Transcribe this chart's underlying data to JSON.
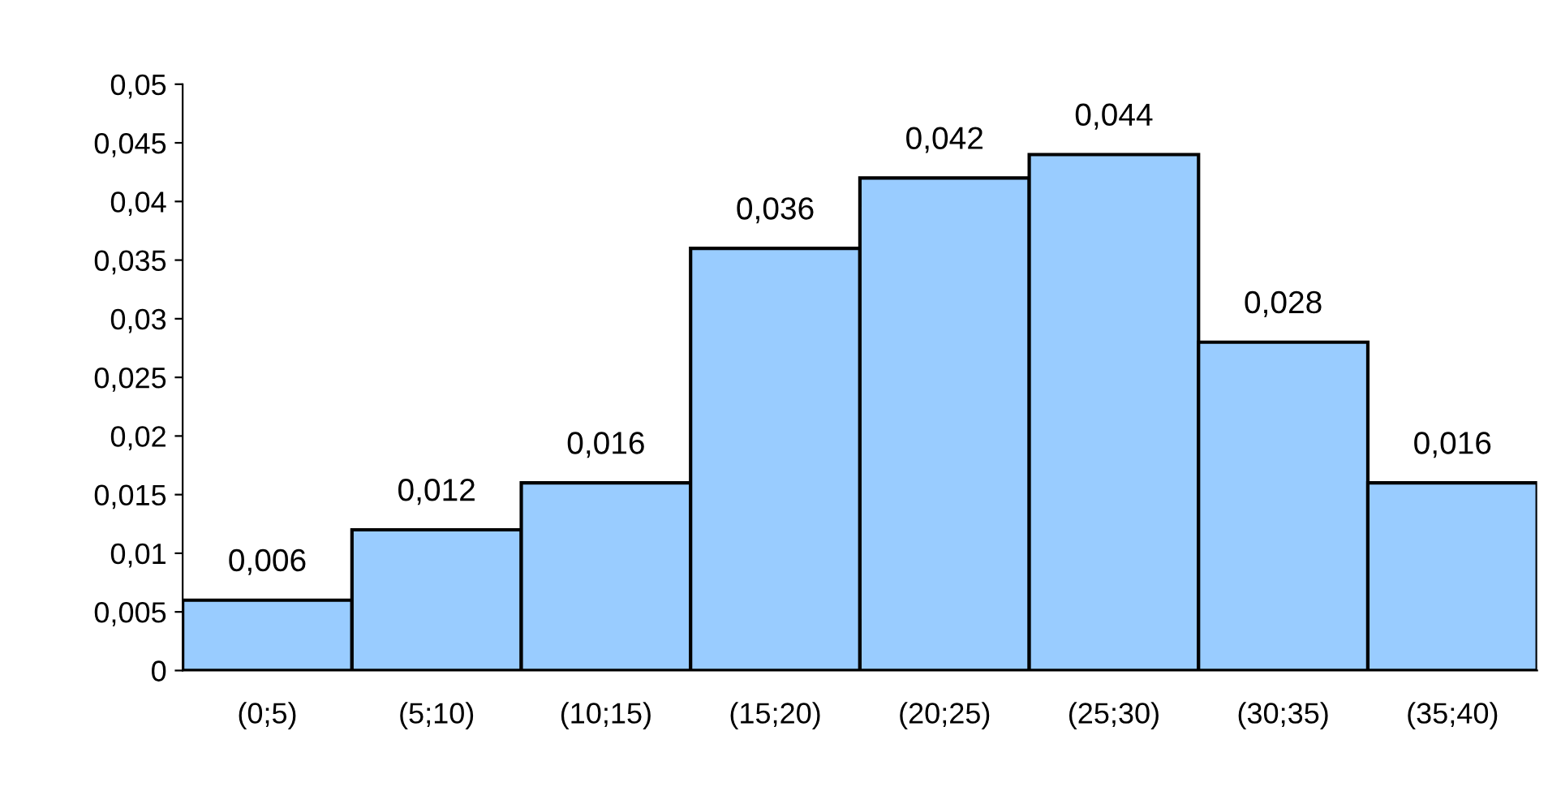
{
  "chart_data": {
    "type": "bar",
    "categories": [
      "(0;5)",
      "(5;10)",
      "(10;15)",
      "(15;20)",
      "(20;25)",
      "(25;30)",
      "(30;35)",
      "(35;40)"
    ],
    "values": [
      0.006,
      0.012,
      0.016,
      0.036,
      0.042,
      0.044,
      0.028,
      0.016
    ],
    "color": "#99ccff",
    "value_labels": [
      "0,006",
      "0,012",
      "0,016",
      "0,036",
      "0,042",
      "0,044",
      "0,028",
      "0,016"
    ],
    "ylim": [
      0,
      0.05
    ],
    "yticks": [
      {
        "value": 0,
        "label": "0"
      },
      {
        "value": 0.005,
        "label": "0,005"
      },
      {
        "value": 0.01,
        "label": "0,01"
      },
      {
        "value": 0.015,
        "label": "0,015"
      },
      {
        "value": 0.02,
        "label": "0,02"
      },
      {
        "value": 0.025,
        "label": "0,025"
      },
      {
        "value": 0.03,
        "label": "0,03"
      },
      {
        "value": 0.035,
        "label": "0,035"
      },
      {
        "value": 0.04,
        "label": "0,04"
      },
      {
        "value": 0.045,
        "label": "0,045"
      },
      {
        "value": 0.05,
        "label": "0,05"
      }
    ],
    "grid": false
  }
}
